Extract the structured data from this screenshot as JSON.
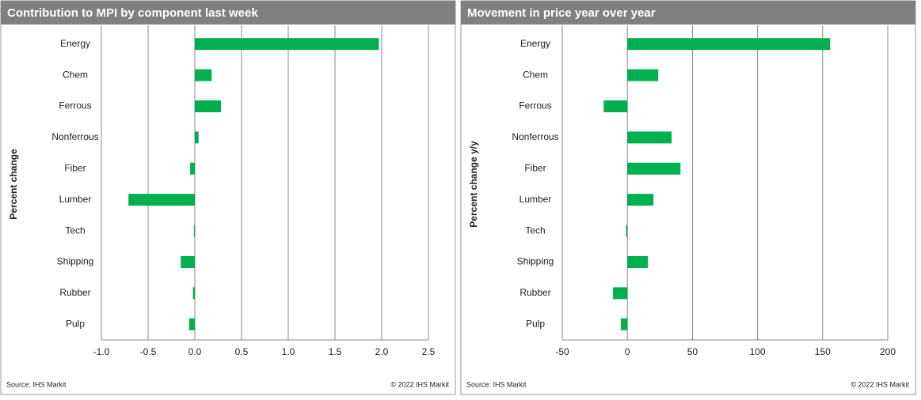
{
  "chart_data": [
    {
      "type": "bar",
      "orientation": "horizontal",
      "title": "Contribution to MPI by component last week",
      "y_label": "Percent change",
      "categories": [
        "Energy",
        "Chem",
        "Ferrous",
        "Nonferrous",
        "Fiber",
        "Lumber",
        "Tech",
        "Shipping",
        "Rubber",
        "Pulp"
      ],
      "values": [
        1.97,
        0.18,
        0.28,
        0.04,
        -0.05,
        -0.71,
        -0.01,
        -0.15,
        -0.02,
        -0.06
      ],
      "color": "#00b050",
      "xlim": [
        -1.0,
        2.5
      ],
      "xticks": [
        {
          "value": -1.0,
          "label": "-1.0"
        },
        -0.5,
        {
          "value": 0,
          "label": "0.0"
        },
        0.5,
        {
          "value": 1.0,
          "label": "1.0"
        },
        1.5,
        {
          "value": 2.0,
          "label": "2.0"
        },
        2.5
      ],
      "grid": true,
      "source": "Source:  IHS Markit",
      "copyright": "© 2022  IHS Markit"
    },
    {
      "type": "bar",
      "orientation": "horizontal",
      "title": "Movement in price year over year",
      "y_label": "Percent change y/y",
      "categories": [
        "Energy",
        "Chem",
        "Ferrous",
        "Nonferrous",
        "Fiber",
        "Lumber",
        "Tech",
        "Shipping",
        "Rubber",
        "Pulp"
      ],
      "values": [
        155.7,
        23.7,
        -18.2,
        34,
        40.8,
        20,
        -1,
        15.8,
        -11,
        -5
      ],
      "color": "#00b050",
      "xlim": [
        -50,
        200
      ],
      "xticks": [
        -50,
        0,
        50,
        100,
        150,
        200
      ],
      "grid": true,
      "source": "Source:  IHS Markit",
      "copyright": "© 2022  IHS Markit"
    }
  ]
}
